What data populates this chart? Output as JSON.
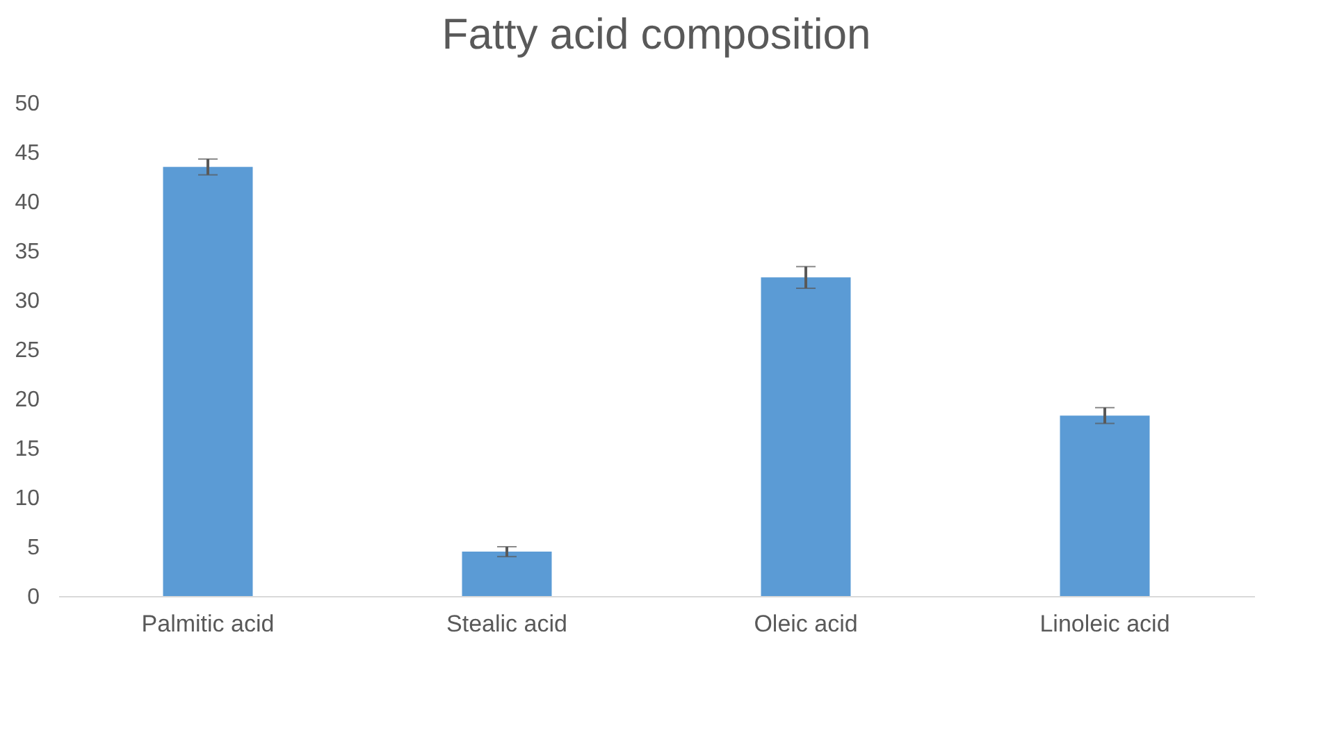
{
  "chart_data": {
    "type": "bar",
    "title": "Fatty acid composition",
    "categories": [
      "Palmitic acid",
      "Stealic acid",
      "Oleic acid",
      "Linoleic acid"
    ],
    "values": [
      43.5,
      4.5,
      32.3,
      18.3
    ],
    "errors": [
      0.8,
      0.5,
      1.1,
      0.8
    ],
    "color": "#5b9bd5",
    "ylim": [
      0,
      50
    ],
    "yticks": [
      0,
      5,
      10,
      15,
      20,
      25,
      30,
      35,
      40,
      45,
      50
    ],
    "grid": false
  }
}
